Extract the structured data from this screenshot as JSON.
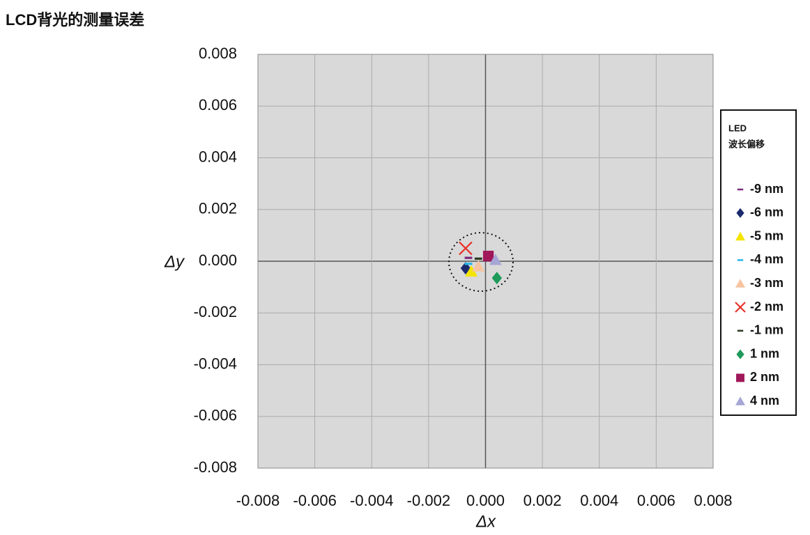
{
  "chart_data": {
    "type": "scatter",
    "title": "LCD背光的测量误差",
    "xlabel": "Δx",
    "ylabel": "Δy",
    "legend_title": [
      "LED",
      "波长偏移"
    ],
    "xlim": [
      -0.008,
      0.008
    ],
    "ylim": [
      -0.008,
      0.008
    ],
    "xticks": [
      -0.008,
      -0.006,
      -0.004,
      -0.002,
      {
        "value": 0,
        "label": "0.000"
      },
      0.002,
      0.004,
      0.006,
      0.008
    ],
    "yticks": [
      -0.008,
      -0.006,
      -0.004,
      -0.002,
      {
        "value": 0,
        "label": "0.000"
      },
      0.002,
      0.004,
      0.006,
      0.008
    ],
    "grid": true,
    "legend": "right",
    "series": [
      {
        "name": "-9 nm",
        "color": "#7b2a7b",
        "marker": "dash",
        "x": [
          -0.0006
        ],
        "values": [
          0.00013
        ]
      },
      {
        "name": "-6 nm",
        "color": "#1a2a6c",
        "marker": "diamond",
        "x": [
          -0.0007
        ],
        "values": [
          -0.00027
        ]
      },
      {
        "name": "-5 nm",
        "color": "#f5e400",
        "marker": "triangle",
        "x": [
          -0.0005
        ],
        "values": [
          -0.0004
        ]
      },
      {
        "name": "-4 nm",
        "color": "#29b6e8",
        "marker": "dash",
        "x": [
          -0.0006
        ],
        "values": [
          -0.0001
        ]
      },
      {
        "name": "-3 nm",
        "color": "#f6c4a0",
        "marker": "triangle",
        "x": [
          -0.00025
        ],
        "values": [
          -0.0002
        ]
      },
      {
        "name": "-2 nm",
        "color": "#e8322a",
        "marker": "x",
        "x": [
          -0.0007
        ],
        "values": [
          0.0005
        ]
      },
      {
        "name": "-1 nm",
        "color": "#2a3a22",
        "marker": "dash",
        "x": [
          -0.00025
        ],
        "values": [
          0.0001
        ]
      },
      {
        "name": "1 nm",
        "color": "#1e9a5a",
        "marker": "diamond",
        "x": [
          0.0004
        ],
        "values": [
          -0.00065
        ]
      },
      {
        "name": "2 nm",
        "color": "#a0175a",
        "marker": "square",
        "x": [
          0.0001
        ],
        "values": [
          0.0002
        ]
      },
      {
        "name": "4 nm",
        "color": "#a6a6d6",
        "marker": "triangle",
        "x": [
          0.00035
        ],
        "values": [
          5e-05
        ]
      }
    ]
  }
}
